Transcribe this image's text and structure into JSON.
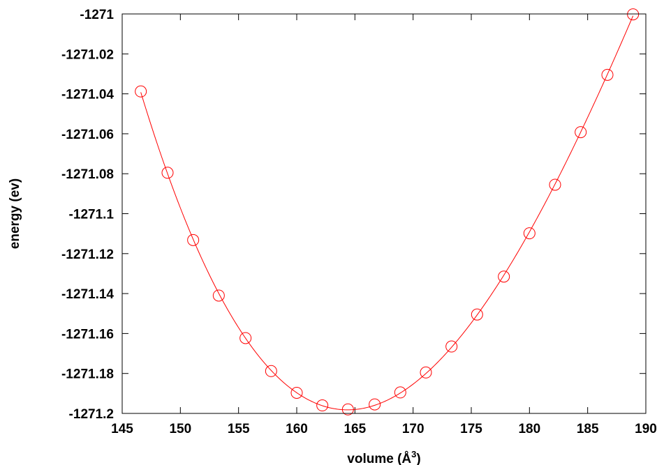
{
  "chart_data": {
    "type": "scatter",
    "xlabel": "volume (Å",
    "xlabel_sup": "3",
    "xlabel_close": ")",
    "ylabel": "energy (ev)",
    "xlim": [
      145,
      190
    ],
    "ylim": [
      -1271.2,
      -1271.0
    ],
    "x_ticks": [
      {
        "value": 145,
        "label": "145"
      },
      {
        "value": 150,
        "label": "150"
      },
      {
        "value": 155,
        "label": "155"
      },
      {
        "value": 160,
        "label": "160"
      },
      {
        "value": 165,
        "label": "165"
      },
      {
        "value": 170,
        "label": "170"
      },
      {
        "value": 175,
        "label": "175"
      },
      {
        "value": 180,
        "label": "180"
      },
      {
        "value": 185,
        "label": "185"
      },
      {
        "value": 190,
        "label": "190"
      }
    ],
    "y_ticks": [
      {
        "value": -1271.0,
        "label": "-1271"
      },
      {
        "value": -1271.02,
        "label": "-1271.02"
      },
      {
        "value": -1271.04,
        "label": "-1271.04"
      },
      {
        "value": -1271.06,
        "label": "-1271.06"
      },
      {
        "value": -1271.08,
        "label": "-1271.08"
      },
      {
        "value": -1271.1,
        "label": "-1271.1"
      },
      {
        "value": -1271.12,
        "label": "-1271.12"
      },
      {
        "value": -1271.14,
        "label": "-1271.14"
      },
      {
        "value": -1271.16,
        "label": "-1271.16"
      },
      {
        "value": -1271.18,
        "label": "-1271.18"
      },
      {
        "value": -1271.2,
        "label": "-1271.2"
      }
    ],
    "grid": false,
    "color": "#ff0000",
    "series": [
      {
        "marker": "open-circle",
        "x": [
          146.6,
          148.9,
          151.1,
          153.3,
          155.6,
          157.8,
          160.0,
          162.2,
          164.4,
          166.7,
          168.9,
          171.1,
          173.3,
          175.5,
          177.8,
          180.0,
          182.2,
          184.4,
          186.7,
          188.9
        ],
        "y": [
          -1271.0388,
          -1271.0795,
          -1271.1132,
          -1271.141,
          -1271.1623,
          -1271.1788,
          -1271.1897,
          -1271.196,
          -1271.198,
          -1271.1955,
          -1271.1895,
          -1271.1795,
          -1271.1665,
          -1271.1505,
          -1271.1315,
          -1271.1098,
          -1271.0855,
          -1271.0592,
          -1271.0305,
          -1271.0002
        ]
      },
      {
        "marker": "line",
        "fit": "smooth curve through points",
        "x": [
          146.6,
          148.9,
          151.1,
          153.3,
          155.6,
          157.8,
          160.0,
          162.2,
          164.4,
          166.7,
          168.9,
          171.1,
          173.3,
          175.5,
          177.8,
          180.0,
          182.2,
          184.4,
          186.7,
          188.9
        ],
        "y": [
          -1271.0388,
          -1271.0795,
          -1271.1132,
          -1271.141,
          -1271.1623,
          -1271.1788,
          -1271.1897,
          -1271.196,
          -1271.198,
          -1271.1955,
          -1271.1895,
          -1271.1795,
          -1271.1665,
          -1271.1505,
          -1271.1315,
          -1271.1098,
          -1271.0855,
          -1271.0592,
          -1271.0305,
          -1271.0002
        ]
      }
    ]
  }
}
